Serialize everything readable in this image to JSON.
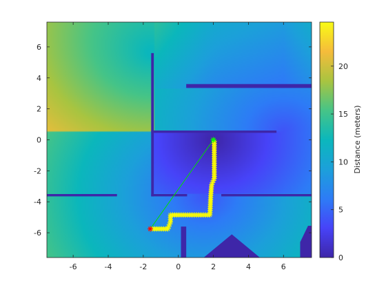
{
  "chart_data": {
    "type": "heatmap",
    "title": "",
    "xlabel": "",
    "ylabel": "",
    "xlim": [
      -7.5,
      7.6
    ],
    "ylim": [
      -7.6,
      7.6
    ],
    "x_ticks": [
      -6,
      -4,
      -2,
      0,
      2,
      4,
      6
    ],
    "y_ticks": [
      -6,
      -4,
      -2,
      0,
      2,
      4,
      6
    ],
    "colormap": "parula",
    "colorbar": {
      "label": "Distance (meters)",
      "range": [
        0,
        24.6
      ],
      "ticks": [
        0,
        5,
        10,
        15,
        20
      ]
    },
    "colors": {
      "obstacle": "#3e26a8",
      "path_marker": "#ffff00",
      "start_marker": "#ff0000",
      "goal_marker": "#00ff00",
      "straight_line": "#00e000"
    },
    "distance_source": {
      "x": 2.0,
      "y": 0.0
    },
    "obstacles": [
      {
        "x0": -1.55,
        "x1": -1.4,
        "y0": -3.65,
        "y1": 5.6
      },
      {
        "x0": -1.55,
        "x1": 5.6,
        "y0": 0.45,
        "y1": 0.6
      },
      {
        "x0": 0.45,
        "x1": 7.6,
        "y0": 3.35,
        "y1": 3.6
      },
      {
        "x0": -7.5,
        "x1": -3.5,
        "y0": -3.65,
        "y1": -3.5
      },
      {
        "x0": -1.55,
        "x1": 0.5,
        "y0": -3.65,
        "y1": -3.5
      },
      {
        "x0": 2.45,
        "x1": 7.6,
        "y0": -3.65,
        "y1": -3.5
      },
      {
        "x0": 0.15,
        "x1": 0.45,
        "y0": -7.6,
        "y1": -5.6
      }
    ],
    "terrain_mounds": [
      [
        [
          1.45,
          -7.6
        ],
        [
          3.05,
          -6.1
        ],
        [
          4.65,
          -7.6
        ]
      ],
      [
        [
          6.95,
          -7.6
        ],
        [
          6.95,
          -6.6
        ],
        [
          7.4,
          -5.55
        ],
        [
          7.6,
          -5.55
        ],
        [
          7.6,
          -7.6
        ]
      ]
    ],
    "path": [
      [
        -1.6,
        -5.75
      ],
      [
        -0.6,
        -5.75
      ],
      [
        -0.45,
        -5.3
      ],
      [
        -0.45,
        -4.85
      ],
      [
        0.4,
        -4.85
      ],
      [
        1.8,
        -4.85
      ],
      [
        1.85,
        -3.6
      ],
      [
        1.9,
        -2.9
      ],
      [
        2.05,
        -2.5
      ],
      [
        2.05,
        -0.1
      ],
      [
        2.0,
        0.0
      ]
    ],
    "start": {
      "x": -1.6,
      "y": -5.75
    },
    "goal": {
      "x": 2.0,
      "y": 0.0
    }
  }
}
